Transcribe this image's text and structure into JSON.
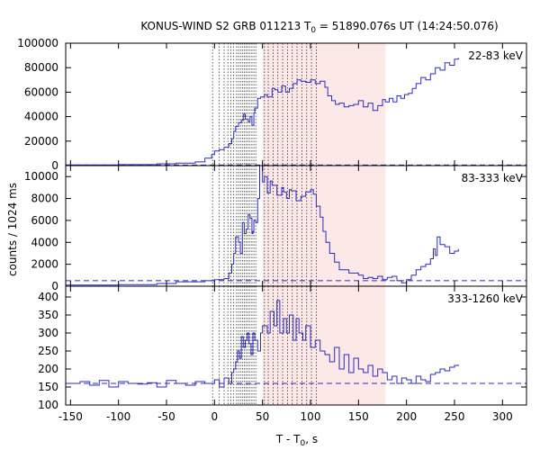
{
  "chart_data": {
    "type": "line",
    "title": {
      "prefix": "KONUS-WIND S2 GRB 011213 T",
      "sub": "0",
      "suffix": " = 51890.076s UT (14:24:50.076)"
    },
    "xlabel": {
      "prefix": "T - T",
      "sub": "0",
      "suffix": ", s"
    },
    "ylabel": "counts / 1024 ms",
    "xlim": [
      -155,
      325
    ],
    "xticks": [
      -150,
      -100,
      -50,
      0,
      50,
      100,
      150,
      200,
      250,
      300
    ],
    "colors": {
      "data": "#2b2bbf",
      "shade": "#fde8e8",
      "background_line": "#2b2bbf"
    },
    "shaded_interval": [
      50,
      178
    ],
    "marker_lines": [
      -2,
      5,
      10,
      14,
      17,
      20,
      23,
      25,
      27,
      29,
      31,
      33,
      35,
      37,
      39,
      41,
      43,
      52,
      56,
      61,
      66,
      71,
      76,
      81,
      86,
      91,
      96,
      101,
      106
    ],
    "panels": [
      {
        "band": "22-83 keV",
        "ylim": [
          0,
          100000
        ],
        "yticks": [
          0,
          20000,
          40000,
          60000,
          80000,
          100000
        ],
        "background": 500,
        "series": {
          "x": [
            -155,
            -100,
            -60,
            -40,
            -20,
            -10,
            -3,
            0,
            5,
            10,
            15,
            18,
            20,
            22,
            25,
            28,
            30,
            32,
            35,
            37,
            39,
            41,
            42,
            45,
            48,
            52,
            55,
            60,
            63,
            66,
            70,
            74,
            78,
            82,
            86,
            90,
            95,
            100,
            105,
            110,
            115,
            118,
            122,
            126,
            130,
            135,
            140,
            145,
            150,
            155,
            160,
            165,
            170,
            175,
            178,
            182,
            186,
            190,
            194,
            198,
            202,
            206,
            210,
            215,
            220,
            225,
            230,
            235,
            240,
            245,
            250,
            254
          ],
          "y": [
            500,
            800,
            1500,
            2000,
            3000,
            6000,
            9000,
            12000,
            13000,
            15000,
            18000,
            22000,
            28000,
            32000,
            35000,
            37000,
            42000,
            38000,
            36000,
            40000,
            33000,
            43000,
            47000,
            55000,
            56000,
            58000,
            56000,
            63000,
            62000,
            60000,
            65000,
            60000,
            63000,
            67000,
            70000,
            69000,
            68000,
            70000,
            67000,
            69000,
            64000,
            57000,
            53000,
            50000,
            51000,
            48000,
            49000,
            50000,
            53000,
            48000,
            51000,
            45000,
            49000,
            54000,
            52000,
            55000,
            52000,
            57000,
            55000,
            58000,
            59000,
            63000,
            67000,
            72000,
            70000,
            75000,
            80000,
            78000,
            84000,
            82000,
            87000,
            88000
          ]
        }
      },
      {
        "band": "83-333 keV",
        "ylim": [
          0,
          11000
        ],
        "yticks": [
          0,
          2000,
          4000,
          6000,
          8000,
          10000
        ],
        "background": 500,
        "series": {
          "x": [
            -155,
            -100,
            -60,
            -40,
            -10,
            0,
            10,
            15,
            18,
            20,
            22,
            25,
            27,
            29,
            31,
            33,
            35,
            37,
            39,
            40,
            41,
            43,
            45,
            47,
            50,
            52,
            55,
            58,
            60,
            65,
            70,
            72,
            75,
            78,
            80,
            85,
            90,
            95,
            100,
            103,
            106,
            110,
            113,
            116,
            120,
            125,
            130,
            140,
            150,
            155,
            160,
            165,
            170,
            175,
            180,
            185,
            190,
            195,
            200,
            205,
            210,
            215,
            220,
            225,
            228,
            230,
            232,
            235,
            240,
            245,
            250,
            254
          ],
          "y": [
            100,
            150,
            250,
            400,
            500,
            600,
            700,
            1200,
            2000,
            3000,
            4500,
            4000,
            3000,
            5800,
            4800,
            5200,
            6500,
            6200,
            4800,
            5000,
            6000,
            5800,
            8000,
            11000,
            9500,
            10000,
            8500,
            9600,
            9200,
            8300,
            9000,
            8600,
            8000,
            8800,
            8700,
            7800,
            8200,
            8600,
            8800,
            8400,
            7300,
            6300,
            5000,
            4000,
            3000,
            2200,
            1500,
            1200,
            1000,
            700,
            800,
            700,
            900,
            600,
            800,
            900,
            500,
            300,
            600,
            1000,
            1500,
            1800,
            2000,
            2500,
            3400,
            2800,
            4500,
            3800,
            3600,
            3000,
            3200,
            3400
          ]
        }
      },
      {
        "band": "333-1260 keV",
        "ylim": [
          100,
          430
        ],
        "yticks": [
          100,
          150,
          200,
          250,
          300,
          350,
          400
        ],
        "background": 160,
        "series": {
          "x": [
            -155,
            -140,
            -130,
            -120,
            -110,
            -100,
            -90,
            -80,
            -70,
            -60,
            -50,
            -40,
            -30,
            -20,
            -10,
            0,
            5,
            10,
            15,
            18,
            20,
            22,
            24,
            26,
            28,
            30,
            32,
            34,
            36,
            38,
            40,
            42,
            45,
            48,
            50,
            55,
            58,
            62,
            65,
            68,
            72,
            75,
            78,
            82,
            85,
            88,
            92,
            95,
            100,
            105,
            110,
            115,
            120,
            125,
            130,
            135,
            140,
            145,
            150,
            155,
            160,
            165,
            170,
            175,
            180,
            185,
            190,
            195,
            200,
            205,
            210,
            215,
            220,
            225,
            230,
            235,
            240,
            245,
            250,
            254
          ],
          "y": [
            160,
            165,
            155,
            168,
            150,
            165,
            160,
            158,
            162,
            150,
            168,
            160,
            155,
            165,
            160,
            170,
            150,
            175,
            160,
            190,
            200,
            220,
            250,
            230,
            290,
            260,
            280,
            300,
            270,
            240,
            300,
            280,
            250,
            300,
            320,
            300,
            360,
            320,
            390,
            300,
            340,
            300,
            350,
            280,
            340,
            300,
            280,
            320,
            260,
            280,
            250,
            240,
            220,
            260,
            200,
            240,
            190,
            230,
            200,
            190,
            210,
            180,
            200,
            190,
            170,
            180,
            160,
            175,
            170,
            160,
            180,
            170,
            165,
            185,
            190,
            200,
            195,
            205,
            210,
            212
          ]
        }
      }
    ]
  }
}
